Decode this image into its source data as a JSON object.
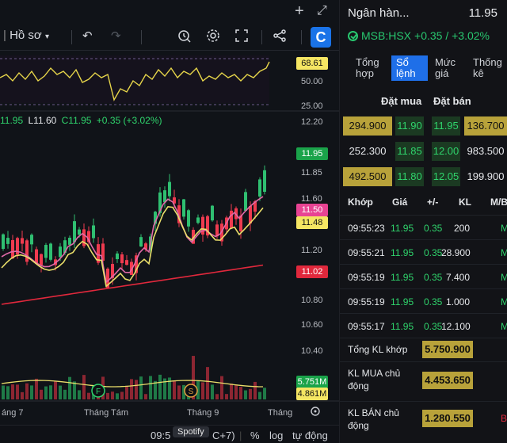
{
  "toolbar": {
    "profile_label": "Hồ sơ",
    "logo_letter": "C"
  },
  "chart": {
    "rsi": {
      "value_tag": "68.61",
      "levels": [
        "50.00",
        "25.00"
      ]
    },
    "ohlc": {
      "h": "11.95",
      "l": "L11.60",
      "c": "C11.95",
      "change": "+0.35 (+3.02%)"
    },
    "price_axis": [
      "12.20",
      "11.95",
      "11.85",
      "11.60",
      "11.48",
      "11.20",
      "11.02",
      "10.80",
      "10.60",
      "10.40"
    ],
    "price_tags": [
      {
        "value": "11.95",
        "bg": "#1aa34a",
        "fg": "#ffffff"
      },
      {
        "value": "11.50",
        "bg": "#e84393",
        "fg": "#ffffff"
      },
      {
        "value": "11.48",
        "bg": "#f5e663",
        "fg": "#101010"
      },
      {
        "value": "11.02",
        "bg": "#e0283c",
        "fg": "#ffffff"
      },
      {
        "value": "5.751M",
        "bg": "#1aa34a",
        "fg": "#ffffff"
      },
      {
        "value": "4.861M",
        "bg": "#f5e663",
        "fg": "#101010"
      }
    ],
    "x_axis": [
      "áng 7",
      "Tháng Tám",
      "Tháng 9",
      "Tháng"
    ],
    "markers": [
      "F",
      "S"
    ]
  },
  "bottom_bar": {
    "time": "09:5",
    "tz": "C+7)",
    "tooltip": "Spotify",
    "percent": "%",
    "log": "log",
    "auto": "tự động"
  },
  "quote": {
    "title": "Ngân hàn...",
    "price": "11.95",
    "symbol": "MSB:HSX",
    "change": "+0.35 / +3.02%",
    "colors": {
      "up": "#2fd46c",
      "highlight": "#b8a23a",
      "tab_active": "#1f6fe8"
    }
  },
  "tabs": [
    {
      "label": "Tổng hợp"
    },
    {
      "label": "Sổ lệnh"
    },
    {
      "label": "Mức giá"
    },
    {
      "label": "Thống kê"
    }
  ],
  "orderbook": {
    "buy_header": "Đặt mua",
    "sell_header": "Đặt bán",
    "rows": [
      {
        "bid_vol": "294.900",
        "bid_px": "11.90",
        "ask_px": "11.95",
        "ask_vol": "136.700"
      },
      {
        "bid_vol": "252.300",
        "bid_px": "11.85",
        "ask_px": "12.00",
        "ask_vol": "983.500"
      },
      {
        "bid_vol": "492.500",
        "bid_px": "11.80",
        "ask_px": "12.05",
        "ask_vol": "199.900"
      }
    ]
  },
  "trades": {
    "headers": [
      "Khớp",
      "Giá",
      "+/-",
      "KL",
      "M/B"
    ],
    "rows": [
      {
        "time": "09:55:23",
        "price": "11.95",
        "chg": "0.35",
        "vol": "200",
        "side": "M"
      },
      {
        "time": "09:55:21",
        "price": "11.95",
        "chg": "0.35",
        "vol": "28.900",
        "side": "M"
      },
      {
        "time": "09:55:19",
        "price": "11.95",
        "chg": "0.35",
        "vol": "7.400",
        "side": "M"
      },
      {
        "time": "09:55:19",
        "price": "11.95",
        "chg": "0.35",
        "vol": "1.000",
        "side": "M"
      },
      {
        "time": "09:55:17",
        "price": "11.95",
        "chg": "0.35",
        "vol": "12.100",
        "side": "M"
      }
    ]
  },
  "summary": [
    {
      "label": "Tổng KL khớp",
      "value": "5.750.900"
    },
    {
      "label": "KL MUA chủ động",
      "value": "4.453.650"
    },
    {
      "label": "KL BÁN chủ động",
      "value": "1.280.550"
    }
  ]
}
